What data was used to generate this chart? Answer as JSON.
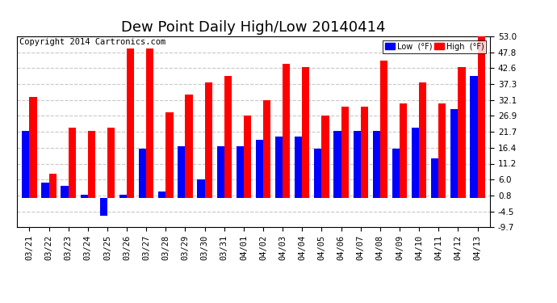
{
  "title": "Dew Point Daily High/Low 20140414",
  "copyright": "Copyright 2014 Cartronics.com",
  "dates": [
    "03/21",
    "03/22",
    "03/23",
    "03/24",
    "03/25",
    "03/26",
    "03/27",
    "03/28",
    "03/29",
    "03/30",
    "03/31",
    "04/01",
    "04/02",
    "04/03",
    "04/04",
    "04/05",
    "04/06",
    "04/07",
    "04/08",
    "04/09",
    "04/10",
    "04/11",
    "04/12",
    "04/13"
  ],
  "low_values": [
    22,
    5,
    4,
    1,
    -6,
    1,
    16,
    2,
    17,
    6,
    17,
    17,
    19,
    20,
    20,
    16,
    22,
    22,
    22,
    16,
    23,
    13,
    29,
    40
  ],
  "high_values": [
    33,
    8,
    23,
    22,
    23,
    49,
    49,
    28,
    34,
    38,
    40,
    27,
    32,
    44,
    43,
    27,
    30,
    30,
    45,
    31,
    38,
    31,
    43,
    53
  ],
  "low_color": "#0000ff",
  "high_color": "#ff0000",
  "bg_color": "#ffffff",
  "plot_bg_color": "#ffffff",
  "grid_color": "#c8c8c8",
  "ylim_min": -9.7,
  "ylim_max": 53.0,
  "yticks": [
    -9.7,
    -4.5,
    0.8,
    6.0,
    11.2,
    16.4,
    21.7,
    26.9,
    32.1,
    37.3,
    42.6,
    47.8,
    53.0
  ],
  "title_fontsize": 13,
  "tick_fontsize": 7.5,
  "copyright_fontsize": 7.5
}
